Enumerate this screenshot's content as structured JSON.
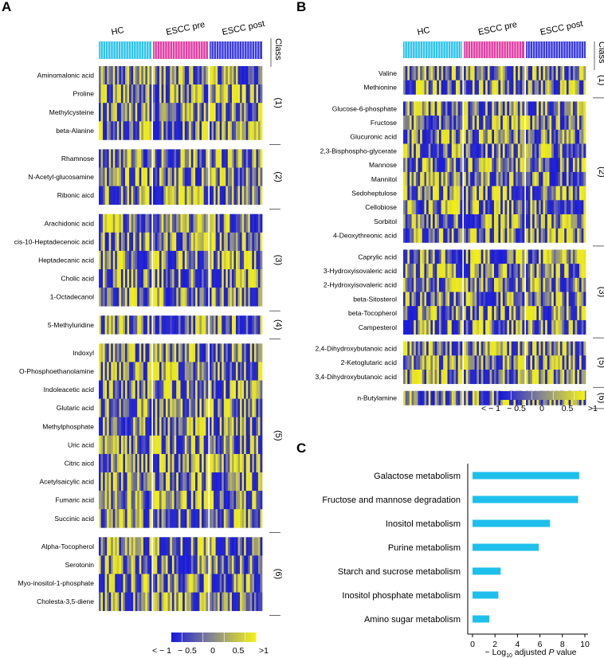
{
  "colors": {
    "low": "#1a1adc",
    "mid": "#8a8a8c",
    "high": "#f2f016",
    "hc": "#2fc4e8",
    "escc_pre": "#e23da3",
    "escc_post": "#3a3ae0",
    "bar": "#1fbfec"
  },
  "panels": {
    "a": {
      "letter": "A"
    },
    "b": {
      "letter": "B"
    },
    "c": {
      "letter": "C"
    }
  },
  "chart_data": [
    {
      "type": "heatmap",
      "panel": "A",
      "groups": [
        "HC",
        "ESCC pre",
        "ESCC post"
      ],
      "class_header": "Class",
      "legend": {
        "labels": [
          "< − 1",
          "− 0.5",
          "0",
          "0.5",
          ">1"
        ],
        "range": [
          -1,
          1
        ]
      },
      "classes": [
        {
          "label": "(1)",
          "metabolites": [
            "Aminomalonic acid",
            "Proline",
            "Methylcysteine",
            "beta-Alanine"
          ]
        },
        {
          "label": "(2)",
          "metabolites": [
            "Rhamnose",
            "N-Acetyl-glucosamine",
            "Ribonic aicd"
          ]
        },
        {
          "label": "(3)",
          "metabolites": [
            "Arachidonic acid",
            "cis-10-Heptadecenoic acid",
            "Heptadecanic acid",
            "Cholic acid",
            "1-Octadecanol"
          ]
        },
        {
          "label": "(4)",
          "metabolites": [
            "5-Methyluridine"
          ]
        },
        {
          "label": "(5)",
          "metabolites": [
            "Indoxyl",
            "O-Phosphoethanolamine",
            "Indoleacetic acid",
            "Glutaric acid",
            "Methylphosphate",
            "Uric acid",
            "Citric aicd",
            "Acetylsaicylic acid",
            "Fumaric acid",
            "Succinic acid"
          ]
        },
        {
          "label": "(6)",
          "metabolites": [
            "Alpha-Tocopherol",
            "Serotonin",
            "Myo-inositol-1-phosphate",
            "Cholesta-3,5-diene"
          ]
        }
      ]
    },
    {
      "type": "heatmap",
      "panel": "B",
      "groups": [
        "HC",
        "ESCC pre",
        "ESCC post"
      ],
      "class_header": "Class",
      "legend": {
        "labels": [
          "< − 1",
          "− 0.5",
          "0",
          "0.5",
          ">1"
        ],
        "range": [
          -1,
          1
        ]
      },
      "classes": [
        {
          "label": "(1)",
          "metabolites": [
            "Valine",
            "Methionine"
          ]
        },
        {
          "label": "(2)",
          "metabolites": [
            "Glucose-6-phosphate",
            "Fructose",
            "Glucuronic acid",
            "2,3-Bisphospho-glycerate",
            "Mannose",
            "Mannitol",
            "Sedoheptulose",
            "Cellobiose",
            "Sorbitol",
            "4-Deoxythreonic acid"
          ]
        },
        {
          "label": "(3)",
          "metabolites": [
            "Caprylic acid",
            "3-Hydroxyisovaleric acid",
            "2-Hydroxyisovaleric acid",
            "beta-Sitosterol",
            "beta-Tocopherol",
            "Campesterol"
          ]
        },
        {
          "label": "(5)",
          "metabolites": [
            "2,4-Dihydroxybutanoic acid",
            "2-Ketoglutaric acid",
            "3,4-Dihydroxybutanoic acid"
          ]
        },
        {
          "label": "(6)",
          "metabolites": [
            "n-Butylamine"
          ]
        }
      ]
    },
    {
      "type": "bar",
      "panel": "C",
      "orientation": "horizontal",
      "categories": [
        "Galactose metabolism",
        "Fructose and mannose degradation",
        "Inositol metabolism",
        "Purine metabolism",
        "Starch and sucrose metabolism",
        "Inositol phosphate metabolism",
        "Amino sugar metabolism"
      ],
      "values": [
        9.5,
        9.4,
        6.9,
        5.9,
        2.5,
        2.3,
        1.5
      ],
      "xlim": [
        0,
        10
      ],
      "xticks": [
        "0",
        "2",
        "4",
        "6",
        "8",
        "10"
      ],
      "xlabel": {
        "prefix": "− Log",
        "sub": "10",
        "middle": " adjusted ",
        "p": "P",
        "suffix": " value"
      }
    }
  ]
}
